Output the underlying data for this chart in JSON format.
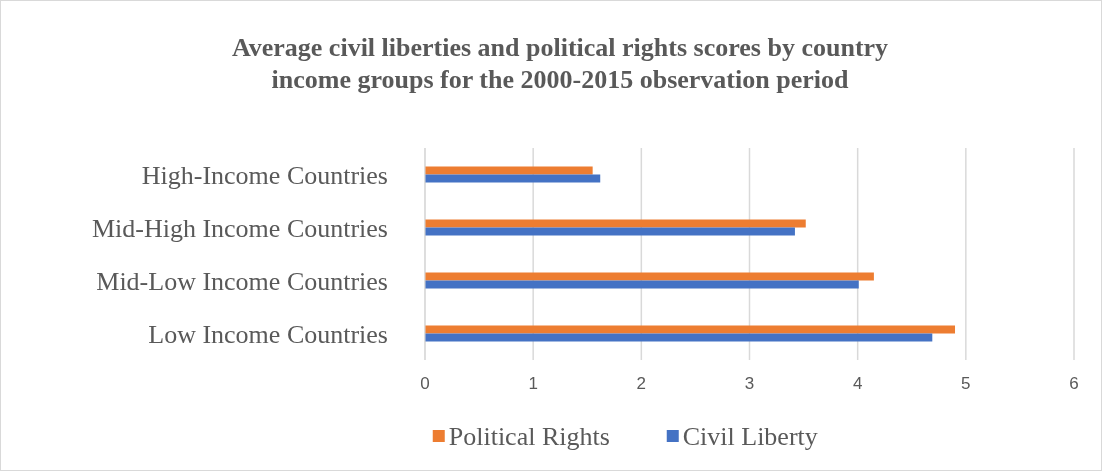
{
  "chart_data": {
    "type": "bar",
    "orientation": "horizontal",
    "title": "Average civil liberties and political rights scores by country income groups for the 2000-2015 observation period",
    "categories": [
      "High-Income Countries",
      "Mid-High Income Countries",
      "Mid-Low Income Countries",
      "Low Income Countries"
    ],
    "series": [
      {
        "name": "Political Rights",
        "color": "#ed7d31",
        "values": [
          1.55,
          3.52,
          4.15,
          4.9
        ]
      },
      {
        "name": "Civil Liberty",
        "color": "#4472c4",
        "values": [
          1.62,
          3.42,
          4.01,
          4.69
        ]
      }
    ],
    "xlim": [
      0,
      6
    ],
    "xticks": [
      0,
      1,
      2,
      3,
      4,
      5,
      6
    ],
    "grid": "x",
    "legend": "bottom"
  }
}
